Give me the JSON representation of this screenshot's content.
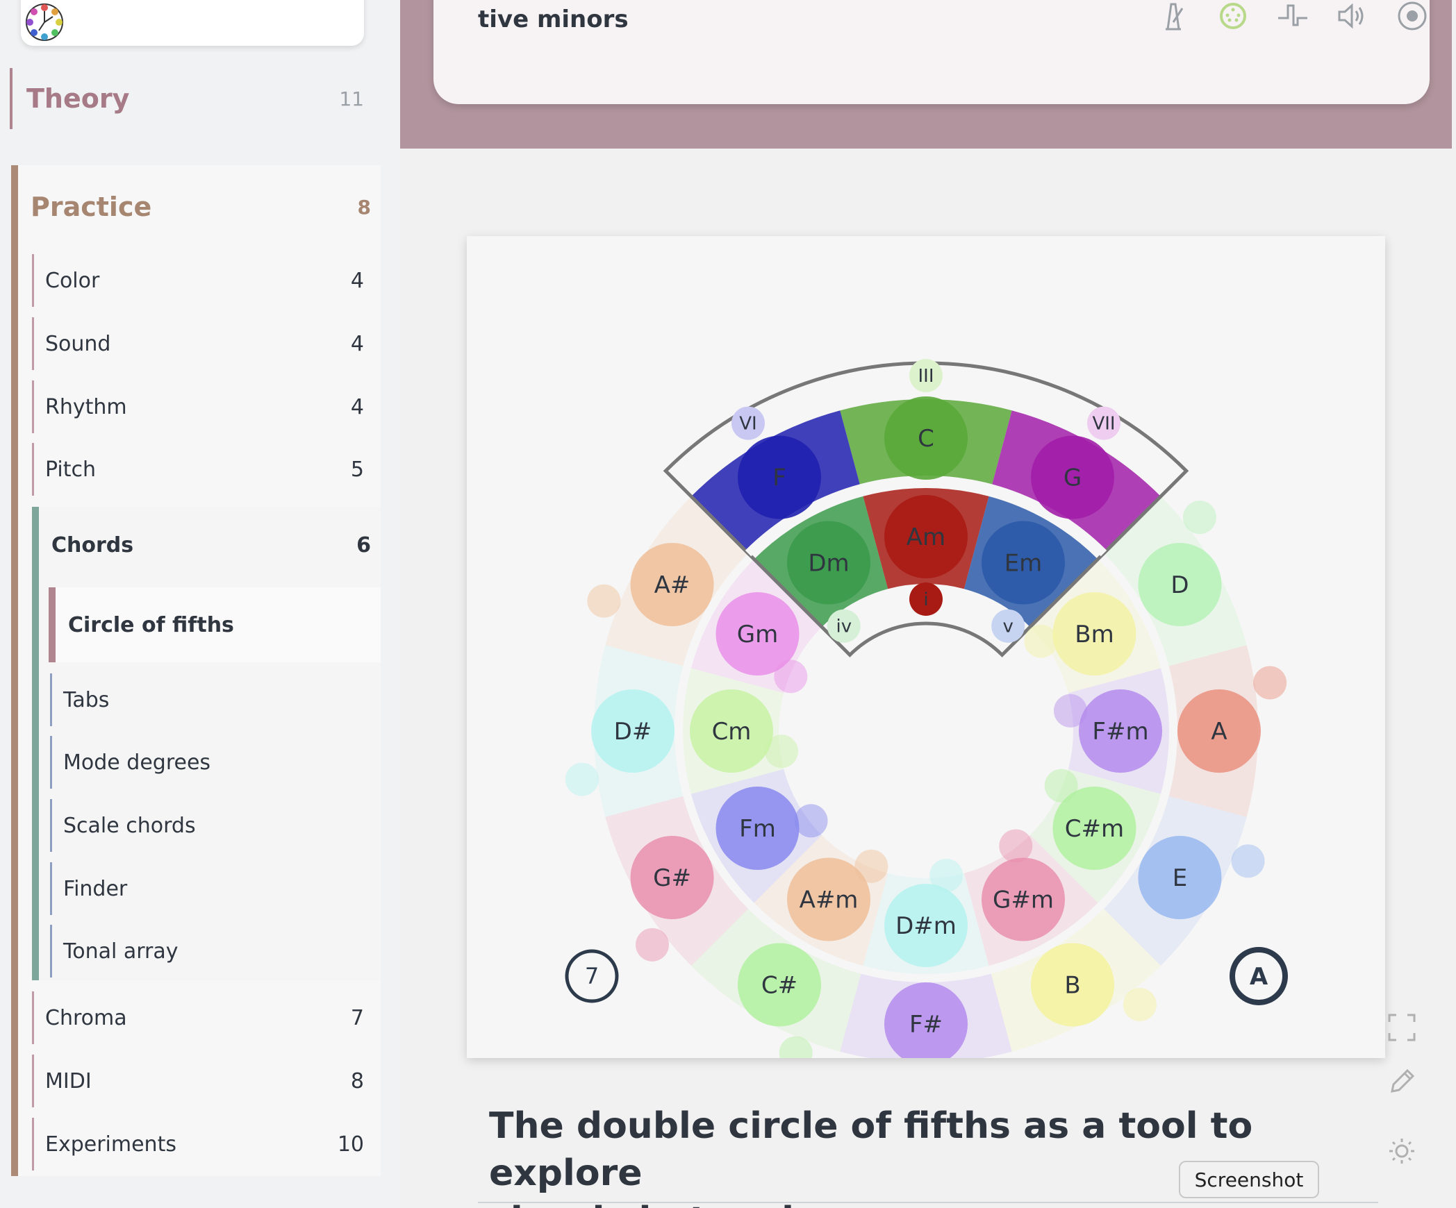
{
  "sidebar": {
    "theory": {
      "label": "Theory",
      "count": "11"
    },
    "practice": {
      "label": "Practice",
      "count": "8"
    },
    "items_before": [
      {
        "label": "Color",
        "count": "4"
      },
      {
        "label": "Sound",
        "count": "4"
      },
      {
        "label": "Rhythm",
        "count": "4"
      },
      {
        "label": "Pitch",
        "count": "5"
      }
    ],
    "chords": {
      "label": "Chords",
      "count": "6",
      "active": "Circle of fifths",
      "items": [
        "Tabs",
        "Mode degrees",
        "Scale chords",
        "Finder",
        "Tonal array"
      ]
    },
    "items_after": [
      {
        "label": "Chroma",
        "count": "7"
      },
      {
        "label": "MIDI",
        "count": "8"
      },
      {
        "label": "Experiments",
        "count": "10"
      }
    ]
  },
  "header": {
    "text": "tive minors",
    "icons": [
      "metronome-icon",
      "midi-icon",
      "waveform-icon",
      "speaker-icon",
      "record-icon"
    ]
  },
  "circle": {
    "tonic": "A",
    "accidentals": "7",
    "outer_notes": [
      {
        "label": "C",
        "color": "#5aa83a"
      },
      {
        "label": "G",
        "color": "#a21ea8"
      },
      {
        "label": "D",
        "color": "#b6f2b8"
      },
      {
        "label": "A",
        "color": "#e9907f"
      },
      {
        "label": "E",
        "color": "#99b8ef"
      },
      {
        "label": "B",
        "color": "#f3f29c"
      },
      {
        "label": "F#",
        "color": "#b48bec"
      },
      {
        "label": "C#",
        "color": "#b2f0a0"
      },
      {
        "label": "G#",
        "color": "#e98fae"
      },
      {
        "label": "D#",
        "color": "#b4f2f0"
      },
      {
        "label": "A#",
        "color": "#efc09a"
      },
      {
        "label": "F",
        "color": "#2020b0"
      }
    ],
    "inner_notes": [
      {
        "label": "Am",
        "color": "#a81b14"
      },
      {
        "label": "Em",
        "color": "#2c5aa8"
      },
      {
        "label": "Bm",
        "color": "#f2f2a4"
      },
      {
        "label": "F#m",
        "color": "#b48bec"
      },
      {
        "label": "C#m",
        "color": "#b2f0a0"
      },
      {
        "label": "G#m",
        "color": "#e98fae"
      },
      {
        "label": "D#m",
        "color": "#b4f2f0"
      },
      {
        "label": "A#m",
        "color": "#efc09a"
      },
      {
        "label": "Fm",
        "color": "#8888ee"
      },
      {
        "label": "Cm",
        "color": "#c8f2a4"
      },
      {
        "label": "Gm",
        "color": "#e98fe8"
      },
      {
        "label": "Dm",
        "color": "#3c9a4c"
      }
    ],
    "degrees_outer": [
      "VI",
      "III",
      "VII"
    ],
    "degrees_inner": [
      "iv",
      "i",
      "v"
    ]
  },
  "article": {
    "title_line1": "The double circle of fifths as a tool to explore",
    "title_line2": "chords in tonal space"
  },
  "tooltip": "Screenshot",
  "side_tools": [
    "fullscreen-icon",
    "edit-icon",
    "theme-icon"
  ]
}
